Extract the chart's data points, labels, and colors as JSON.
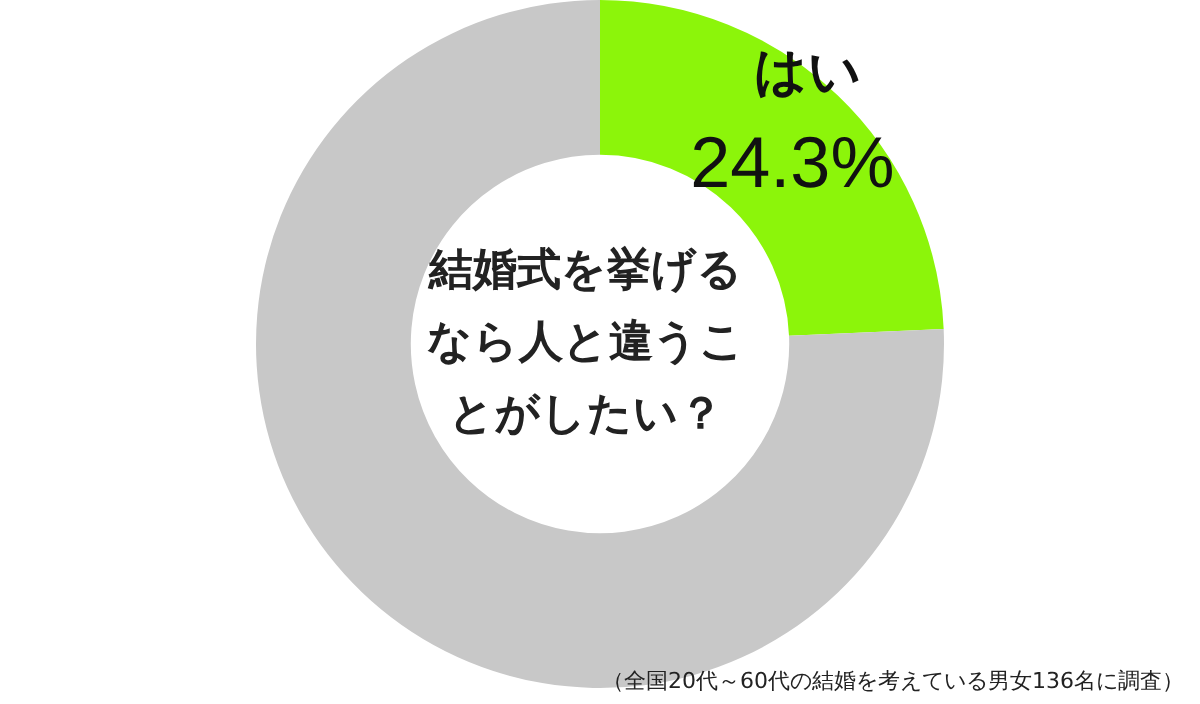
{
  "chart_data": {
    "type": "donut",
    "title": "結婚式を挙げるなら人と違うことがしたい？",
    "categories": [
      "はい",
      null
    ],
    "values": [
      24.3,
      75.7
    ],
    "value_labels": [
      "24.3%",
      null
    ],
    "colors": [
      "#8cf50a",
      "#c8c8c8"
    ],
    "legend": false,
    "annotations": [
      "（全国20代～60代の結婚を考えている男女136名に調査）"
    ]
  }
}
